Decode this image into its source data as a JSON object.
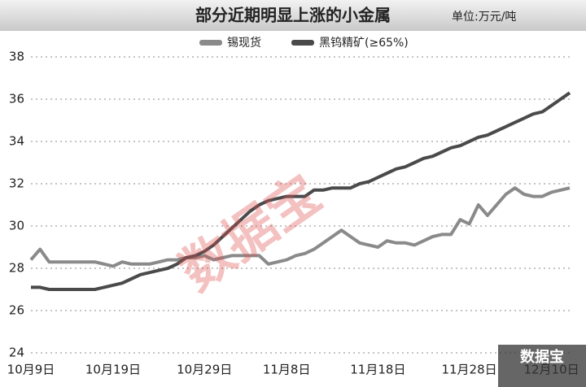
{
  "chart_data": {
    "type": "line",
    "title": "部分近期明显上涨的小金属",
    "unit": "单位:万元/吨",
    "watermark": "数据宝",
    "logo": "数据宝",
    "categories": [
      "10月9日",
      null,
      null,
      null,
      null,
      null,
      null,
      null,
      null,
      "10月19日",
      null,
      null,
      null,
      null,
      null,
      null,
      null,
      null,
      null,
      "10月29日",
      null,
      null,
      null,
      null,
      null,
      null,
      null,
      null,
      "11月8日",
      null,
      null,
      null,
      null,
      null,
      null,
      null,
      null,
      null,
      "11月18日",
      null,
      null,
      null,
      null,
      null,
      null,
      null,
      null,
      null,
      "11月28日",
      null,
      null,
      null,
      null,
      null,
      null,
      null,
      null,
      "12月10日",
      null,
      null
    ],
    "series": [
      {
        "name": "锡现货",
        "color": "#8a8a8a",
        "values": [
          28.4,
          28.9,
          28.3,
          28.3,
          28.3,
          28.3,
          28.3,
          28.3,
          28.2,
          28.1,
          28.3,
          28.2,
          28.2,
          28.2,
          28.3,
          28.4,
          28.4,
          28.5,
          28.5,
          28.6,
          28.4,
          28.5,
          28.6,
          28.6,
          28.6,
          28.6,
          28.2,
          28.3,
          28.4,
          28.6,
          28.7,
          28.9,
          29.2,
          29.5,
          29.8,
          29.5,
          29.2,
          29.1,
          29.0,
          29.3,
          29.2,
          29.2,
          29.1,
          29.3,
          29.5,
          29.6,
          29.6,
          30.3,
          30.1,
          31.0,
          30.5,
          31.0,
          31.5,
          31.8,
          31.5,
          31.4,
          31.4,
          31.6,
          31.7,
          31.8
        ]
      },
      {
        "name": "黑钨精矿(≥65%)",
        "color": "#4a4a4a",
        "values": [
          27.1,
          27.1,
          27.0,
          27.0,
          27.0,
          27.0,
          27.0,
          27.0,
          27.1,
          27.2,
          27.3,
          27.5,
          27.7,
          27.8,
          27.9,
          28.0,
          28.2,
          28.5,
          28.6,
          28.8,
          29.1,
          29.5,
          29.9,
          30.3,
          30.7,
          31.0,
          31.2,
          31.3,
          31.4,
          31.4,
          31.4,
          31.7,
          31.7,
          31.8,
          31.8,
          31.8,
          32.0,
          32.1,
          32.3,
          32.5,
          32.7,
          32.8,
          33.0,
          33.2,
          33.3,
          33.5,
          33.7,
          33.8,
          34.0,
          34.2,
          34.3,
          34.5,
          34.7,
          34.9,
          35.1,
          35.3,
          35.4,
          35.7,
          36.0,
          36.3
        ]
      }
    ],
    "ylim": [
      24,
      38
    ],
    "yticks": [
      24,
      26,
      28,
      30,
      32,
      34,
      36,
      38
    ],
    "grid": true
  }
}
